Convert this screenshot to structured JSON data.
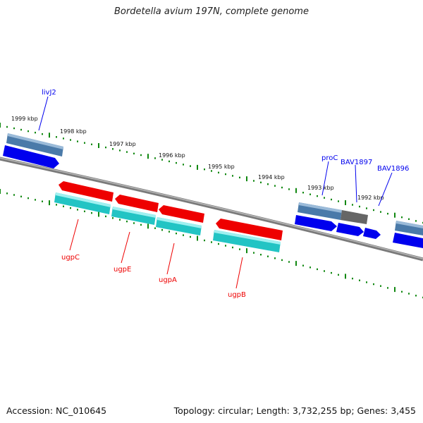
{
  "title": "Bordetella avium 197N, complete genome",
  "footer": {
    "accession": "Accession: NC_010645",
    "summary": "Topology: circular; Length: 3,732,255 bp; Genes: 3,455"
  },
  "colors": {
    "forward_gene": "#0000ee",
    "reverse_gene": "#ee0000",
    "forward_cds": "#4f7fb0",
    "reverse_cds": "#2ccbcb",
    "tick": "#118811",
    "backbone": "#888888"
  },
  "ruler_labels": [
    "1999 kbp",
    "1998 kbp",
    "1997 kbp",
    "1996 kbp",
    "1995 kbp",
    "1994 kbp",
    "1993 kbp",
    "1992 kbp"
  ],
  "gene_labels": {
    "forward": [
      "livJ2",
      "proC",
      "BAV1897",
      "BAV1896"
    ],
    "reverse": [
      "ugpC",
      "ugpE",
      "ugpA",
      "ugpB"
    ]
  }
}
